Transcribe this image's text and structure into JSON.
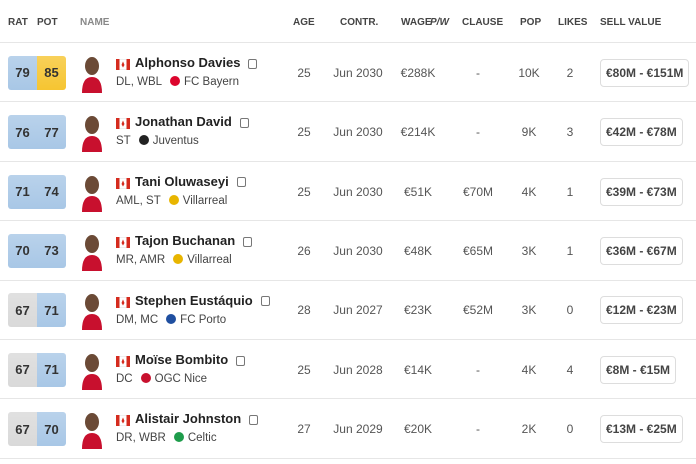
{
  "header": {
    "rat": "RAT",
    "pot": "POT",
    "name": "NAME",
    "age": "AGE",
    "contract": "CONTR.",
    "wage": "WAGE",
    "wage_unit": "P/W",
    "clause": "CLAUSE",
    "pop": "POP",
    "likes": "LIKES",
    "sell_value": "SELL VALUE"
  },
  "rows": [
    {
      "rat": 79,
      "rat_color": "#a8c7e6",
      "pot": 85,
      "pot_color": "#f6c531",
      "name": "Alphonso Davies",
      "positions": "DL, WBL",
      "club": "FC Bayern",
      "club_color": "#dc052d",
      "age": 25,
      "contract": "Jun 2030",
      "wage": "€288K",
      "clause": "-",
      "pop": "10K",
      "likes": 2,
      "sell_value": "€80M - €151M"
    },
    {
      "rat": 76,
      "rat_color": "#a8c7e6",
      "pot": 77,
      "pot_color": "#a8c7e6",
      "name": "Jonathan David",
      "positions": "ST",
      "club": "Juventus",
      "club_color": "#222222",
      "age": 25,
      "contract": "Jun 2030",
      "wage": "€214K",
      "clause": "-",
      "pop": "9K",
      "likes": 3,
      "sell_value": "€42M - €78M"
    },
    {
      "rat": 71,
      "rat_color": "#a8c7e6",
      "pot": 74,
      "pot_color": "#a8c7e6",
      "name": "Tani Oluwaseyi",
      "positions": "AML, ST",
      "club": "Villarreal",
      "club_color": "#e8b500",
      "age": 25,
      "contract": "Jun 2030",
      "wage": "€51K",
      "clause": "€70M",
      "pop": "4K",
      "likes": 1,
      "sell_value": "€39M - €73M"
    },
    {
      "rat": 70,
      "rat_color": "#a8c7e6",
      "pot": 73,
      "pot_color": "#a8c7e6",
      "name": "Tajon Buchanan",
      "positions": "MR, AMR",
      "club": "Villarreal",
      "club_color": "#e8b500",
      "age": 26,
      "contract": "Jun 2030",
      "wage": "€48K",
      "clause": "€65M",
      "pop": "3K",
      "likes": 1,
      "sell_value": "€36M - €67M"
    },
    {
      "rat": 67,
      "rat_color": "#d9d9d9",
      "pot": 71,
      "pot_color": "#a8c7e6",
      "name": "Stephen Eustáquio",
      "positions": "DM, MC",
      "club": "FC Porto",
      "club_color": "#1f4fa0",
      "age": 28,
      "contract": "Jun 2027",
      "wage": "€23K",
      "clause": "€52M",
      "pop": "3K",
      "likes": 0,
      "sell_value": "€12M - €23M"
    },
    {
      "rat": 67,
      "rat_color": "#d9d9d9",
      "pot": 71,
      "pot_color": "#a8c7e6",
      "name": "Moïse Bombito",
      "positions": "DC",
      "club": "OGC Nice",
      "club_color": "#c8102e",
      "age": 25,
      "contract": "Jun 2028",
      "wage": "€14K",
      "clause": "-",
      "pop": "4K",
      "likes": 4,
      "sell_value": "€8M - €15M"
    },
    {
      "rat": 67,
      "rat_color": "#d9d9d9",
      "pot": 70,
      "pot_color": "#a8c7e6",
      "name": "Alistair Johnston",
      "positions": "DR, WBR",
      "club": "Celtic",
      "club_color": "#1e9c4b",
      "age": 27,
      "contract": "Jun 2029",
      "wage": "€20K",
      "clause": "-",
      "pop": "2K",
      "likes": 0,
      "sell_value": "€13M - €25M"
    }
  ]
}
